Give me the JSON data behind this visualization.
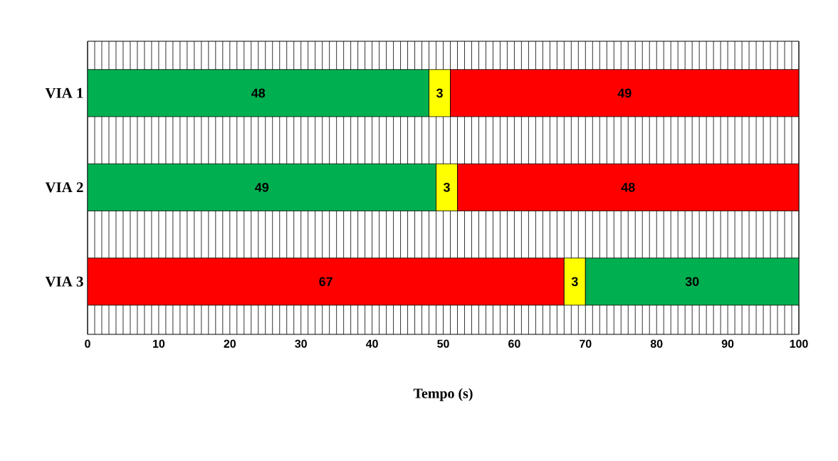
{
  "chart_data": {
    "type": "bar",
    "orientation": "horizontal",
    "stacked": true,
    "categories": [
      "VIA 1",
      "VIA 2",
      "VIA 3"
    ],
    "series": [
      {
        "values": [
          48,
          49,
          67
        ],
        "colors": [
          "#00b050",
          "#00b050",
          "#ff0000"
        ]
      },
      {
        "values": [
          3,
          3,
          3
        ],
        "colors": [
          "#ffff00",
          "#ffff00",
          "#ffff00"
        ]
      },
      {
        "values": [
          49,
          48,
          30
        ],
        "colors": [
          "#ff0000",
          "#ff0000",
          "#00b050"
        ]
      }
    ],
    "data_labels": true,
    "xlabel": "Tempo (s)",
    "xlim": [
      0,
      100
    ],
    "xticks": [
      0,
      {
        "value": 1,
        "label": null
      },
      {
        "value": 2,
        "label": null
      },
      {
        "value": 3,
        "label": null
      },
      {
        "value": 4,
        "label": null
      },
      {
        "value": 5,
        "label": null
      },
      {
        "value": 6,
        "label": null
      },
      {
        "value": 7,
        "label": null
      },
      {
        "value": 8,
        "label": null
      },
      {
        "value": 9,
        "label": null
      },
      10,
      {
        "value": 11,
        "label": null
      },
      {
        "value": 12,
        "label": null
      },
      {
        "value": 13,
        "label": null
      },
      {
        "value": 14,
        "label": null
      },
      {
        "value": 15,
        "label": null
      },
      {
        "value": 16,
        "label": null
      },
      {
        "value": 17,
        "label": null
      },
      {
        "value": 18,
        "label": null
      },
      {
        "value": 19,
        "label": null
      },
      20,
      {
        "value": 21,
        "label": null
      },
      {
        "value": 22,
        "label": null
      },
      {
        "value": 23,
        "label": null
      },
      {
        "value": 24,
        "label": null
      },
      {
        "value": 25,
        "label": null
      },
      {
        "value": 26,
        "label": null
      },
      {
        "value": 27,
        "label": null
      },
      {
        "value": 28,
        "label": null
      },
      {
        "value": 29,
        "label": null
      },
      30,
      {
        "value": 31,
        "label": null
      },
      {
        "value": 32,
        "label": null
      },
      {
        "value": 33,
        "label": null
      },
      {
        "value": 34,
        "label": null
      },
      {
        "value": 35,
        "label": null
      },
      {
        "value": 36,
        "label": null
      },
      {
        "value": 37,
        "label": null
      },
      {
        "value": 38,
        "label": null
      },
      {
        "value": 39,
        "label": null
      },
      40,
      {
        "value": 41,
        "label": null
      },
      {
        "value": 42,
        "label": null
      },
      {
        "value": 43,
        "label": null
      },
      {
        "value": 44,
        "label": null
      },
      {
        "value": 45,
        "label": null
      },
      {
        "value": 46,
        "label": null
      },
      {
        "value": 47,
        "label": null
      },
      {
        "value": 48,
        "label": null
      },
      {
        "value": 49,
        "label": null
      },
      50,
      {
        "value": 51,
        "label": null
      },
      {
        "value": 52,
        "label": null
      },
      {
        "value": 53,
        "label": null
      },
      {
        "value": 54,
        "label": null
      },
      {
        "value": 55,
        "label": null
      },
      {
        "value": 56,
        "label": null
      },
      {
        "value": 57,
        "label": null
      },
      {
        "value": 58,
        "label": null
      },
      {
        "value": 59,
        "label": null
      },
      60,
      {
        "value": 61,
        "label": null
      },
      {
        "value": 62,
        "label": null
      },
      {
        "value": 63,
        "label": null
      },
      {
        "value": 64,
        "label": null
      },
      {
        "value": 65,
        "label": null
      },
      {
        "value": 66,
        "label": null
      },
      {
        "value": 67,
        "label": null
      },
      {
        "value": 68,
        "label": null
      },
      {
        "value": 69,
        "label": null
      },
      70,
      {
        "value": 71,
        "label": null
      },
      {
        "value": 72,
        "label": null
      },
      {
        "value": 73,
        "label": null
      },
      {
        "value": 74,
        "label": null
      },
      {
        "value": 75,
        "label": null
      },
      {
        "value": 76,
        "label": null
      },
      {
        "value": 77,
        "label": null
      },
      {
        "value": 78,
        "label": null
      },
      {
        "value": 79,
        "label": null
      },
      80,
      {
        "value": 81,
        "label": null
      },
      {
        "value": 82,
        "label": null
      },
      {
        "value": 83,
        "label": null
      },
      {
        "value": 84,
        "label": null
      },
      {
        "value": 85,
        "label": null
      },
      {
        "value": 86,
        "label": null
      },
      {
        "value": 87,
        "label": null
      },
      {
        "value": 88,
        "label": null
      },
      {
        "value": 89,
        "label": null
      },
      90,
      {
        "value": 91,
        "label": null
      },
      {
        "value": 92,
        "label": null
      },
      {
        "value": 93,
        "label": null
      },
      {
        "value": 94,
        "label": null
      },
      {
        "value": 95,
        "label": null
      },
      {
        "value": 96,
        "label": null
      },
      {
        "value": 97,
        "label": null
      },
      {
        "value": 98,
        "label": null
      },
      {
        "value": 99,
        "label": null
      },
      100
    ],
    "grid": "x"
  }
}
